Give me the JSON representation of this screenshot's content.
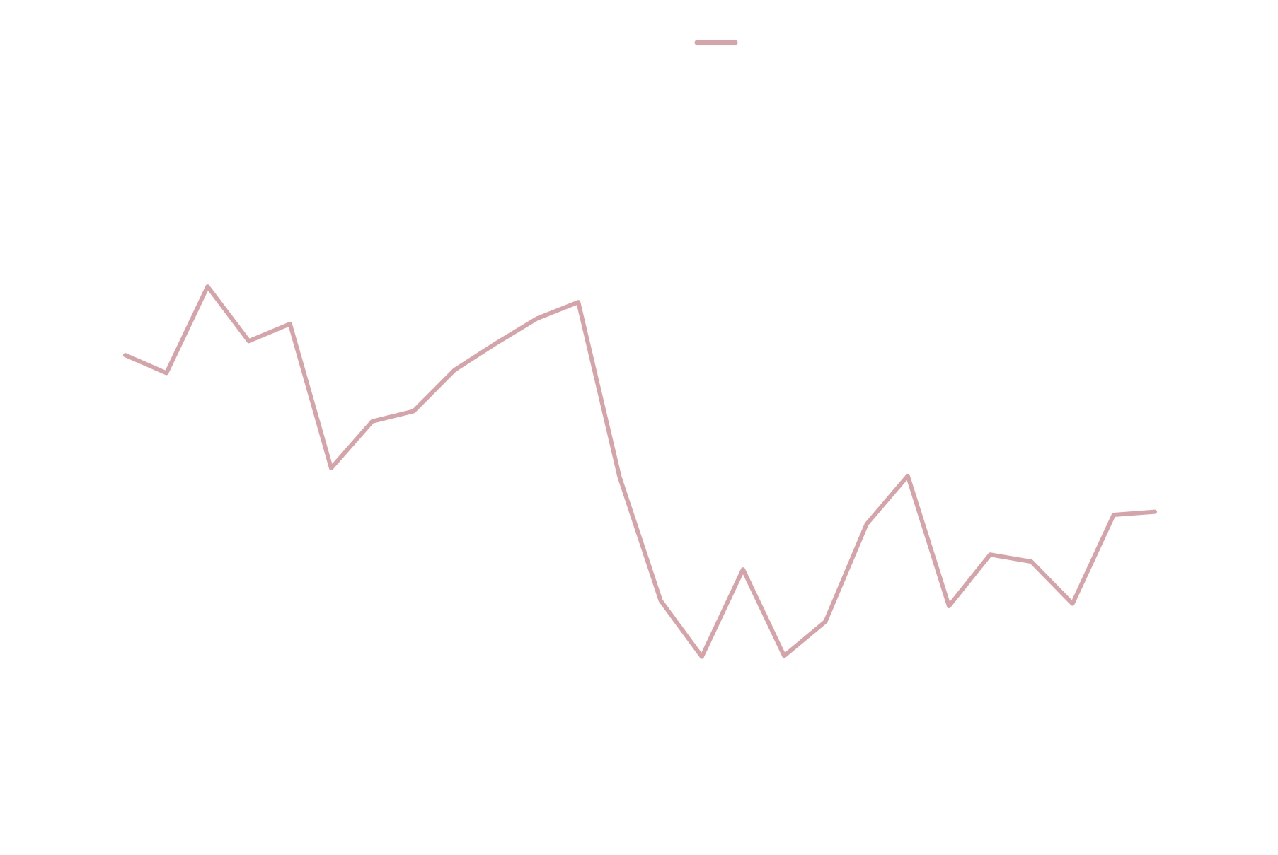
{
  "chart_data": {
    "type": "line",
    "legend_placement": "top-center",
    "grid": false,
    "x": [
      1,
      2,
      3,
      4,
      5,
      6,
      7,
      8,
      9,
      10,
      11,
      12,
      13,
      14,
      15,
      16,
      17,
      18,
      19,
      20,
      21,
      22,
      23,
      24,
      25,
      26
    ],
    "xlim": [
      1,
      26
    ],
    "ylim": [
      0,
      100
    ],
    "series": [
      {
        "color": "#d6a3a9",
        "values": [
          59.7,
          57.4,
          68.5,
          61.5,
          63.7,
          45.2,
          51.2,
          52.5,
          57.8,
          61.2,
          64.4,
          66.5,
          44.1,
          28.2,
          21.0,
          32.2,
          21.1,
          25.5,
          38.0,
          44.2,
          27.5,
          34.1,
          33.2,
          27.8,
          39.2,
          39.6
        ]
      }
    ]
  }
}
